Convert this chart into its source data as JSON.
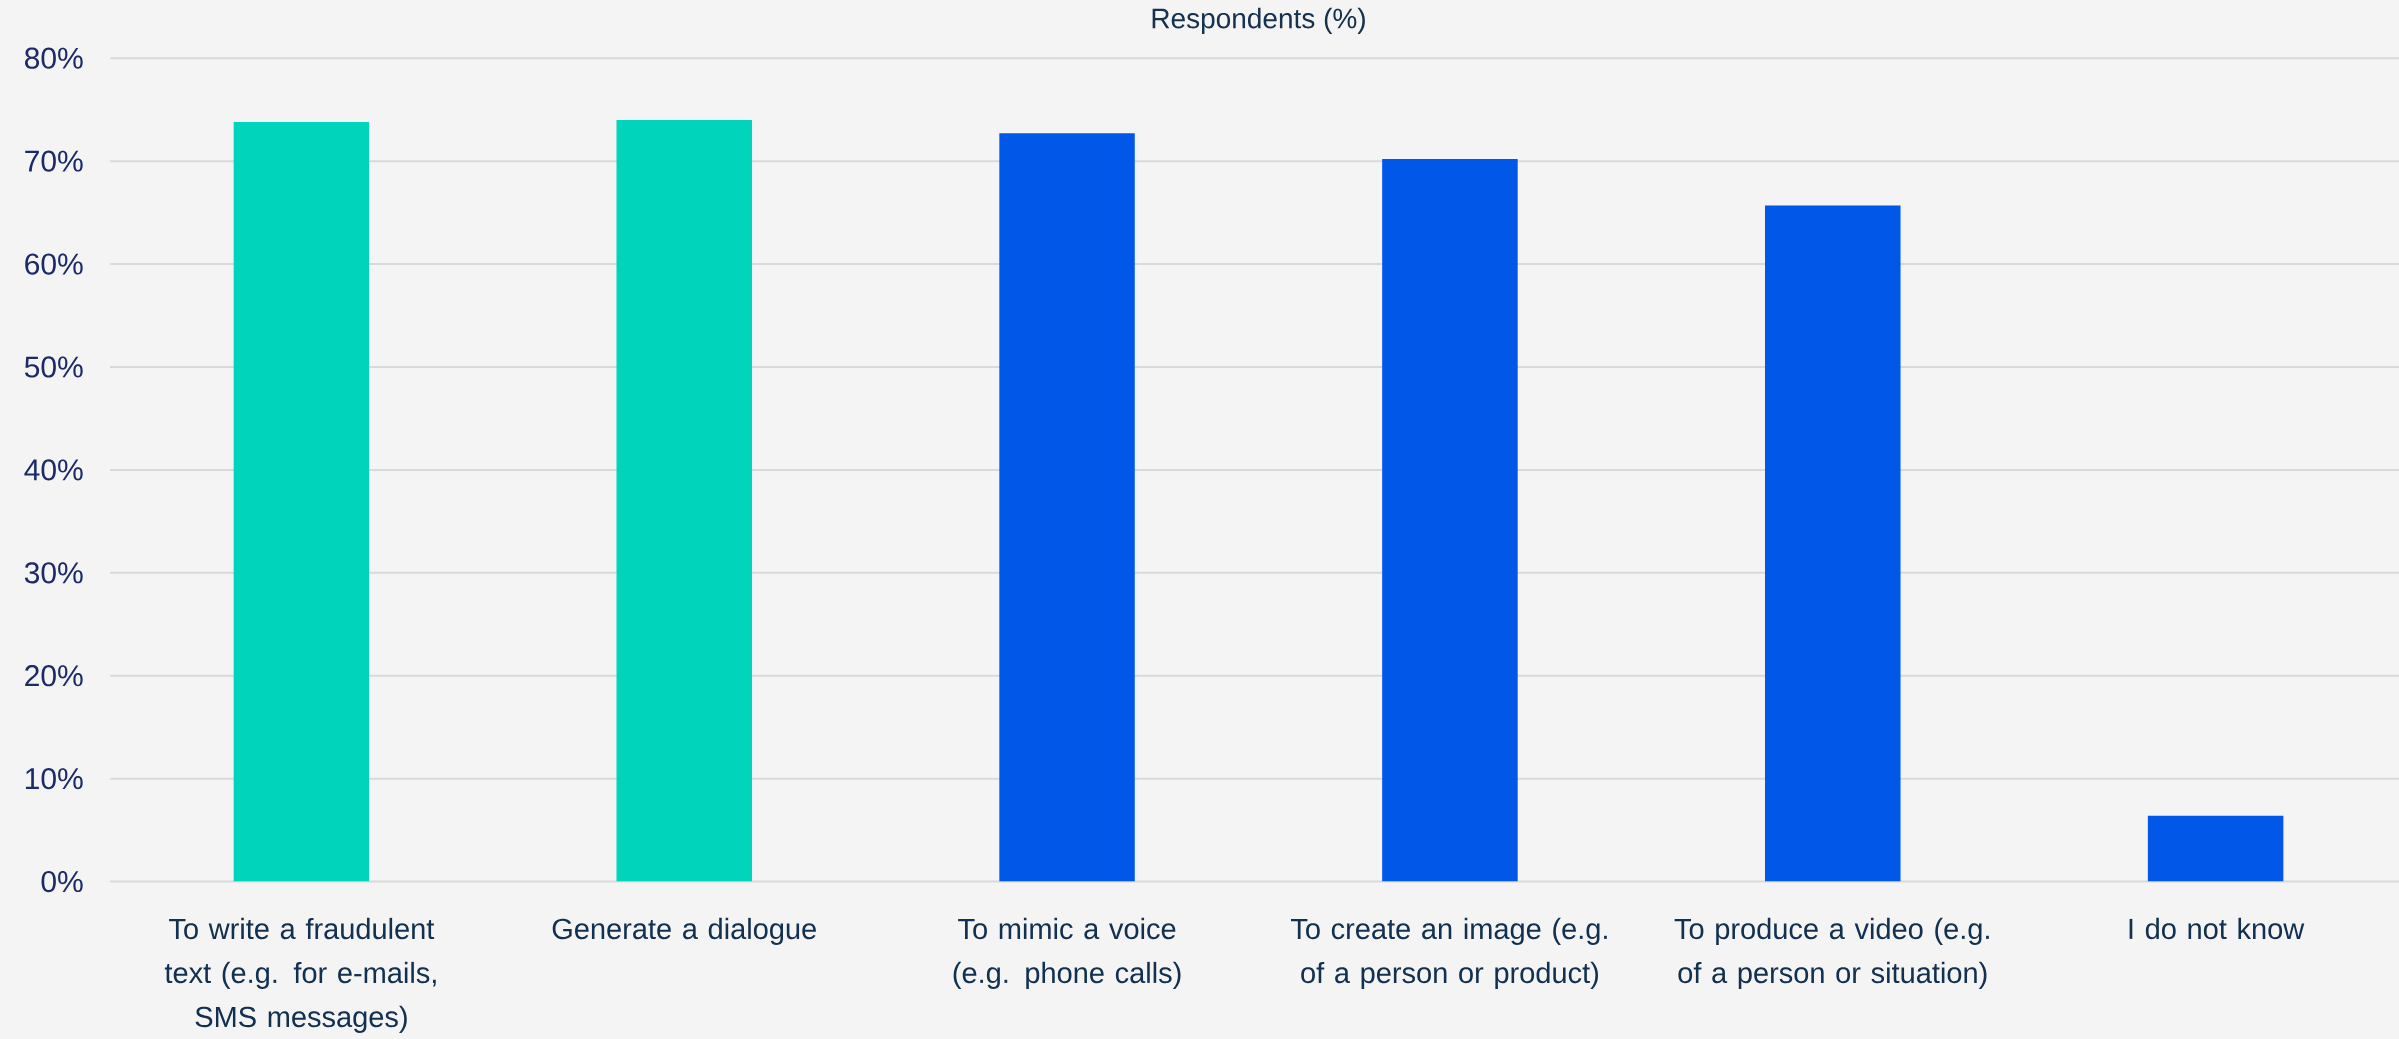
{
  "chart_data": {
    "type": "bar",
    "title": "Respondents (%)",
    "categories": [
      "To write a fraudulent text (e.g. for e-mails, SMS messages)",
      "Generate a dialogue",
      "To mimic a voice (e.g. phone calls)",
      "To create an image (e.g. of a person or product)",
      "To produce a video (e.g. of a person or situation)",
      "I do not know"
    ],
    "values": [
      73.8,
      74.0,
      72.7,
      70.2,
      65.7,
      6.4
    ],
    "colors": [
      "#00d4bb",
      "#00d4bb",
      "#0057e8",
      "#0057e8",
      "#0057e8",
      "#0057e8"
    ],
    "ylim": [
      0,
      80
    ],
    "yticks": [
      {
        "value": 0,
        "label": "0%"
      },
      {
        "value": 10,
        "label": "10%"
      },
      {
        "value": 20,
        "label": "20%"
      },
      {
        "value": 30,
        "label": "30%"
      },
      {
        "value": 40,
        "label": "40%"
      },
      {
        "value": 50,
        "label": "50%"
      },
      {
        "value": 60,
        "label": "60%"
      },
      {
        "value": 70,
        "label": "70%"
      },
      {
        "value": 80,
        "label": "80%"
      }
    ],
    "grid": "y"
  }
}
